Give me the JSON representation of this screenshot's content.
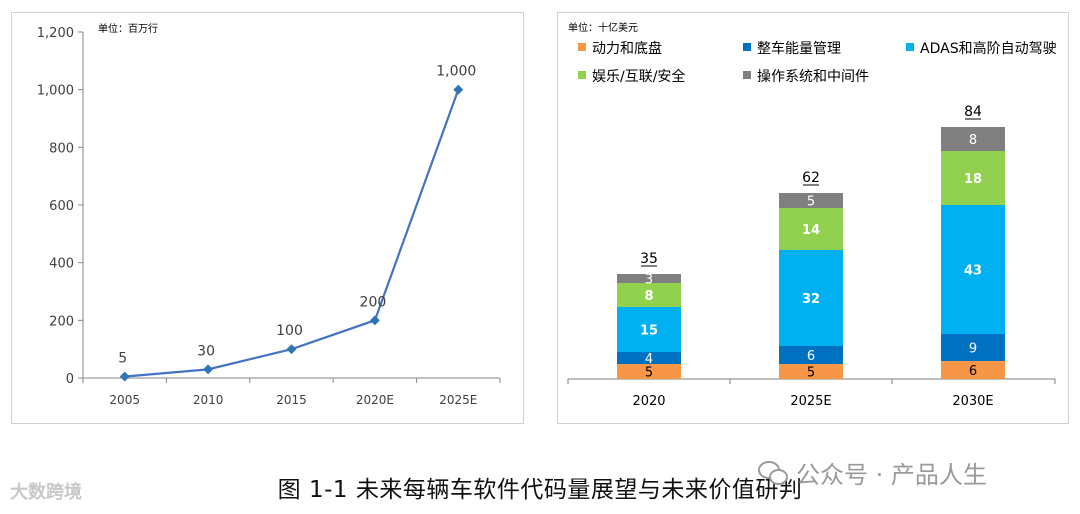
{
  "chart_data": [
    {
      "type": "line",
      "unit_label": "单位：百万行",
      "x": [
        "2005",
        "2010",
        "2015",
        "2020E",
        "2025E"
      ],
      "series": [
        {
          "values": [
            5,
            30,
            100,
            200,
            1000
          ],
          "data_labels": [
            "5",
            "30",
            "100",
            "200",
            "1,000"
          ]
        }
      ],
      "yticks": [
        "0",
        "200",
        "400",
        "600",
        "800",
        "1,000",
        "1,200"
      ],
      "ylim": [
        0,
        1200
      ],
      "color": "#4472c4",
      "marker_color": "#2e75b6"
    },
    {
      "type": "bar",
      "stacked": true,
      "unit_label": "单位：十亿美元",
      "categories": [
        "2020",
        "2025E",
        "2030E"
      ],
      "totals": [
        "35",
        "62",
        "84"
      ],
      "legend_position": "top",
      "series": [
        {
          "name": "动力和底盘",
          "values": [
            5,
            5,
            6
          ],
          "color": "#f79646"
        },
        {
          "name": "整车能量管理",
          "values": [
            4,
            6,
            9
          ],
          "color": "#0070c0"
        },
        {
          "name": "ADAS和高阶自动驾驶",
          "values": [
            15,
            32,
            43
          ],
          "color": "#00b0f0"
        },
        {
          "name": "娱乐/互联/安全",
          "values": [
            8,
            14,
            18
          ],
          "color": "#92d050"
        },
        {
          "name": "操作系统和中间件",
          "values": [
            3,
            5,
            8
          ],
          "color": "#808080"
        }
      ]
    }
  ],
  "caption": "图  1-1  未来每辆车软件代码量展望与未来价值研判",
  "watermarks": {
    "left": "大数跨境",
    "right": "公众号 · 产品人生"
  }
}
